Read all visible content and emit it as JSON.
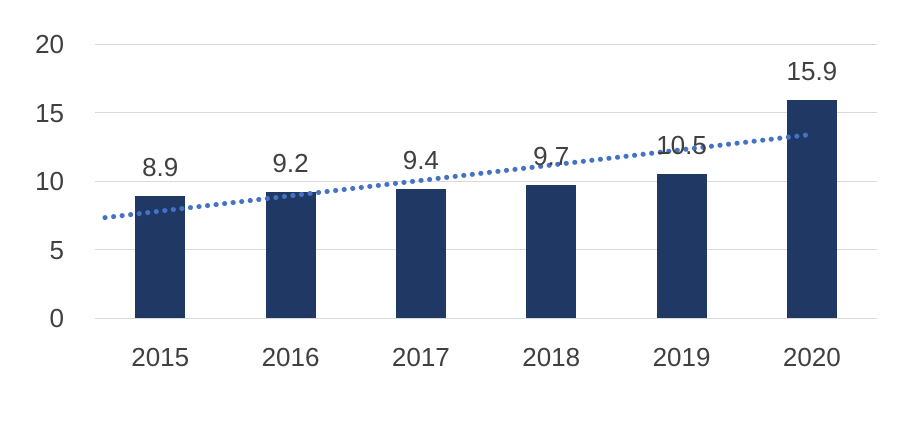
{
  "chart_data": {
    "type": "bar",
    "title": "",
    "xlabel": "",
    "ylabel": "",
    "categories": [
      "2015",
      "2016",
      "2017",
      "2018",
      "2019",
      "2020"
    ],
    "values": [
      8.9,
      9.2,
      9.4,
      9.7,
      10.5,
      15.9
    ],
    "data_labels": [
      "8.9",
      "9.2",
      "9.4",
      "9.7",
      "10.5",
      "15.9"
    ],
    "ylim": [
      0,
      20
    ],
    "yticks": [
      0,
      5,
      10,
      15,
      20
    ],
    "grid": true,
    "legend": false,
    "trendline": {
      "type": "linear",
      "style": "dotted"
    },
    "colors": {
      "bar": "#1F3864",
      "trendline": "#4472C4",
      "gridline": "#D9D9D9",
      "text": "#404040",
      "background": "#FFFFFF"
    }
  }
}
